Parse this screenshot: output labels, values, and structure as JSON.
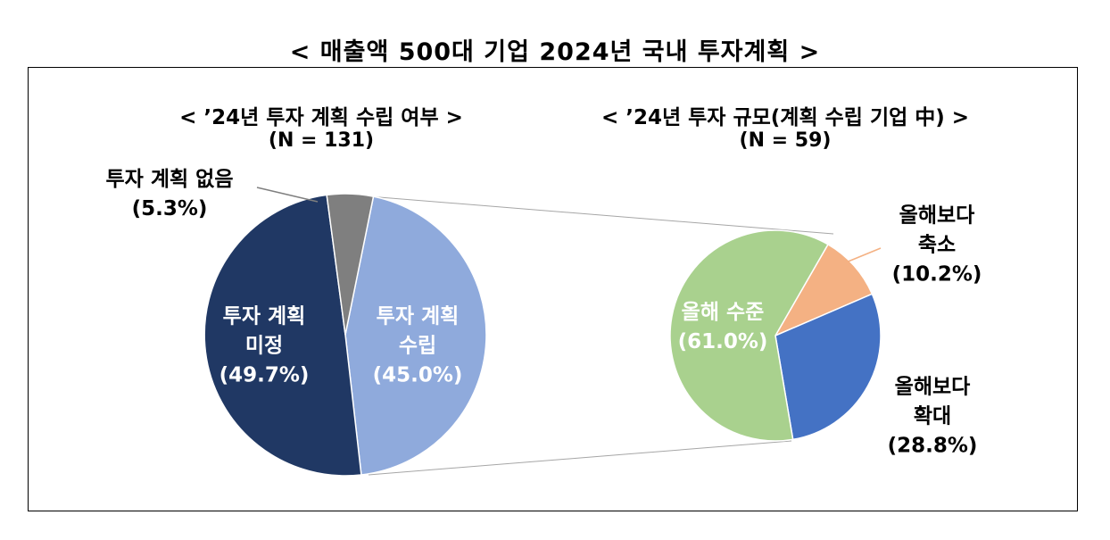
{
  "title": "< 매출액 500대 기업 2024년 국내 투자계획 >",
  "chart_data": [
    {
      "type": "pie",
      "title": "< ’24년 투자 계획 수립 여부 >",
      "subtitle": "(N = 131)",
      "slices": [
        {
          "label_lines": [
            "투자 계획",
            "수립"
          ],
          "pct_label": "(45.0%)",
          "value": 45.0,
          "color": "#8faadc",
          "text_color": "#ffffff"
        },
        {
          "label_lines": [
            "투자 계획",
            "미정"
          ],
          "pct_label": "(49.7%)",
          "value": 49.7,
          "color": "#203864",
          "text_color": "#ffffff"
        },
        {
          "label_lines": [
            "투자 계획 없음"
          ],
          "pct_label": "(5.3%)",
          "value": 5.3,
          "color": "#7f7f7f",
          "text_color": "#000000"
        }
      ]
    },
    {
      "type": "pie",
      "title": "< ’24년 투자 규모(계획 수립 기업 中) >",
      "subtitle": "(N = 59)",
      "slices": [
        {
          "label_lines": [
            "올해보다",
            "축소"
          ],
          "pct_label": "(10.2%)",
          "value": 10.2,
          "color": "#f4b183",
          "text_color": "#000000"
        },
        {
          "label_lines": [
            "올해보다",
            "확대"
          ],
          "pct_label": "(28.8%)",
          "value": 28.8,
          "color": "#4472c4",
          "text_color": "#000000"
        },
        {
          "label_lines": [
            "올해 수준"
          ],
          "pct_label": "(61.0%)",
          "value": 61.0,
          "color": "#a9d18e",
          "text_color": "#ffffff"
        }
      ]
    }
  ]
}
